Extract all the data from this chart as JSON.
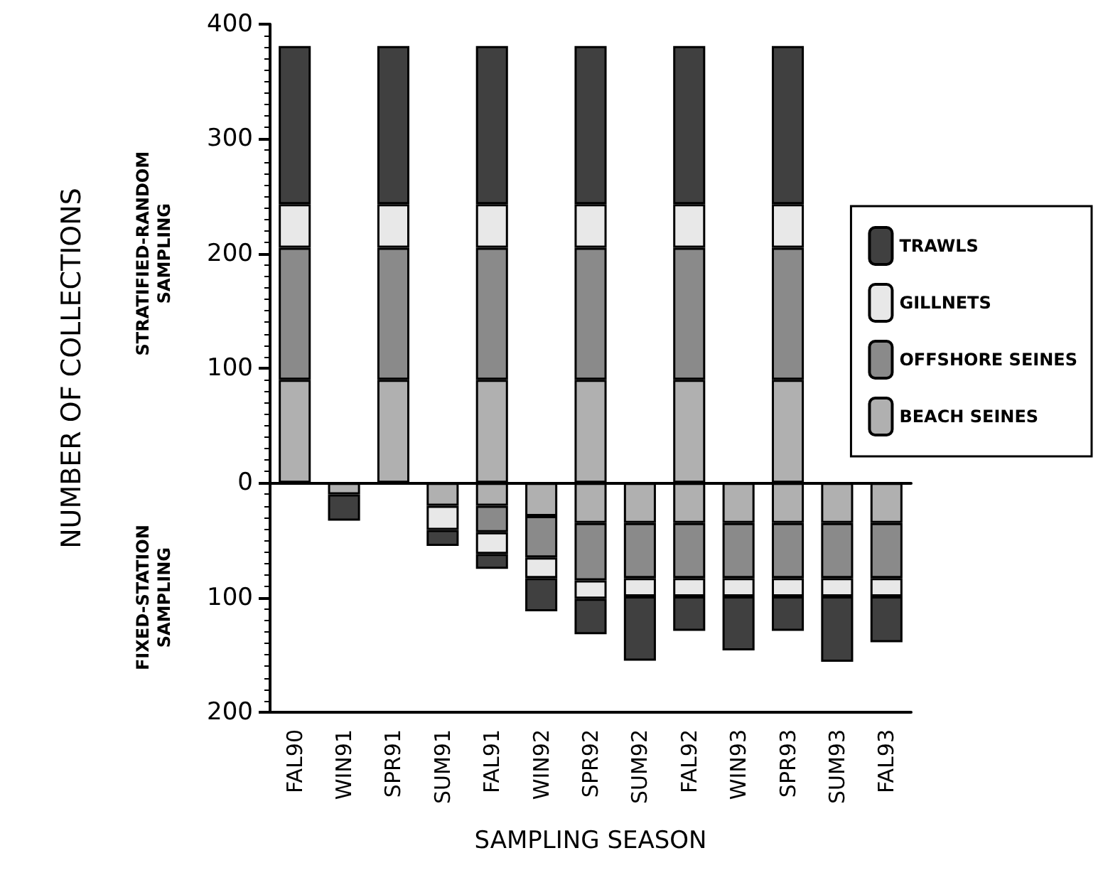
{
  "chart_data": {
    "type": "bar",
    "stacked": true,
    "xlabel": "SAMPLING SEASON",
    "ylabel": "NUMBER OF COLLECTIONS",
    "annotations": [
      "STRATIFIED-RANDOM\nSAMPLING",
      "FIXED-STATION\nSAMPLING"
    ],
    "categories": [
      "FAL90",
      "WIN91",
      "SPR91",
      "SUM91",
      "FAL91",
      "WIN92",
      "SPR92",
      "SUM92",
      "FAL92",
      "WIN93",
      "SPR93",
      "SUM93",
      "FAL93"
    ],
    "ylim": [
      -200,
      400
    ],
    "yticks": [
      {
        "value": -200,
        "label": "200"
      },
      {
        "value": -100,
        "label": "100"
      },
      0,
      100,
      200,
      300,
      400
    ],
    "legend": "right",
    "series": [
      {
        "name": "BEACH SEINES",
        "color": "#b0b0b0",
        "values": [
          90,
          null,
          90,
          null,
          90,
          null,
          90,
          null,
          90,
          null,
          90,
          null,
          null
        ]
      },
      {
        "name": "OFFSHORE SEINES",
        "color": "#8a8a8a",
        "values": [
          115,
          null,
          115,
          null,
          115,
          null,
          115,
          null,
          115,
          null,
          115,
          null,
          null
        ]
      },
      {
        "name": "GILLNETS",
        "color": "#e8e8e8",
        "values": [
          38,
          null,
          38,
          null,
          38,
          null,
          38,
          null,
          38,
          null,
          38,
          null,
          null
        ]
      },
      {
        "name": "TRAWLS",
        "color": "#404040",
        "values": [
          138,
          null,
          138,
          null,
          138,
          null,
          138,
          null,
          138,
          null,
          138,
          null,
          null
        ]
      },
      {
        "color": "#b0b0b0",
        "values": [
          null,
          -10,
          null,
          -20,
          -20,
          -29,
          -35,
          -35,
          -35,
          -35,
          -35,
          -35,
          -35
        ]
      },
      {
        "color": "#8a8a8a",
        "values": [
          null,
          null,
          null,
          null,
          -23,
          -36,
          -50,
          -48,
          -48,
          -48,
          -48,
          -48,
          -48
        ]
      },
      {
        "color": "#e8e8e8",
        "values": [
          null,
          null,
          null,
          -21,
          -19,
          -18,
          -16,
          -16,
          -16,
          -16,
          -16,
          -16,
          -16
        ]
      },
      {
        "color": "#404040",
        "values": [
          null,
          -23,
          null,
          -14,
          -13,
          -29,
          -31,
          -56,
          -30,
          -47,
          -30,
          -57,
          -40
        ]
      }
    ]
  }
}
